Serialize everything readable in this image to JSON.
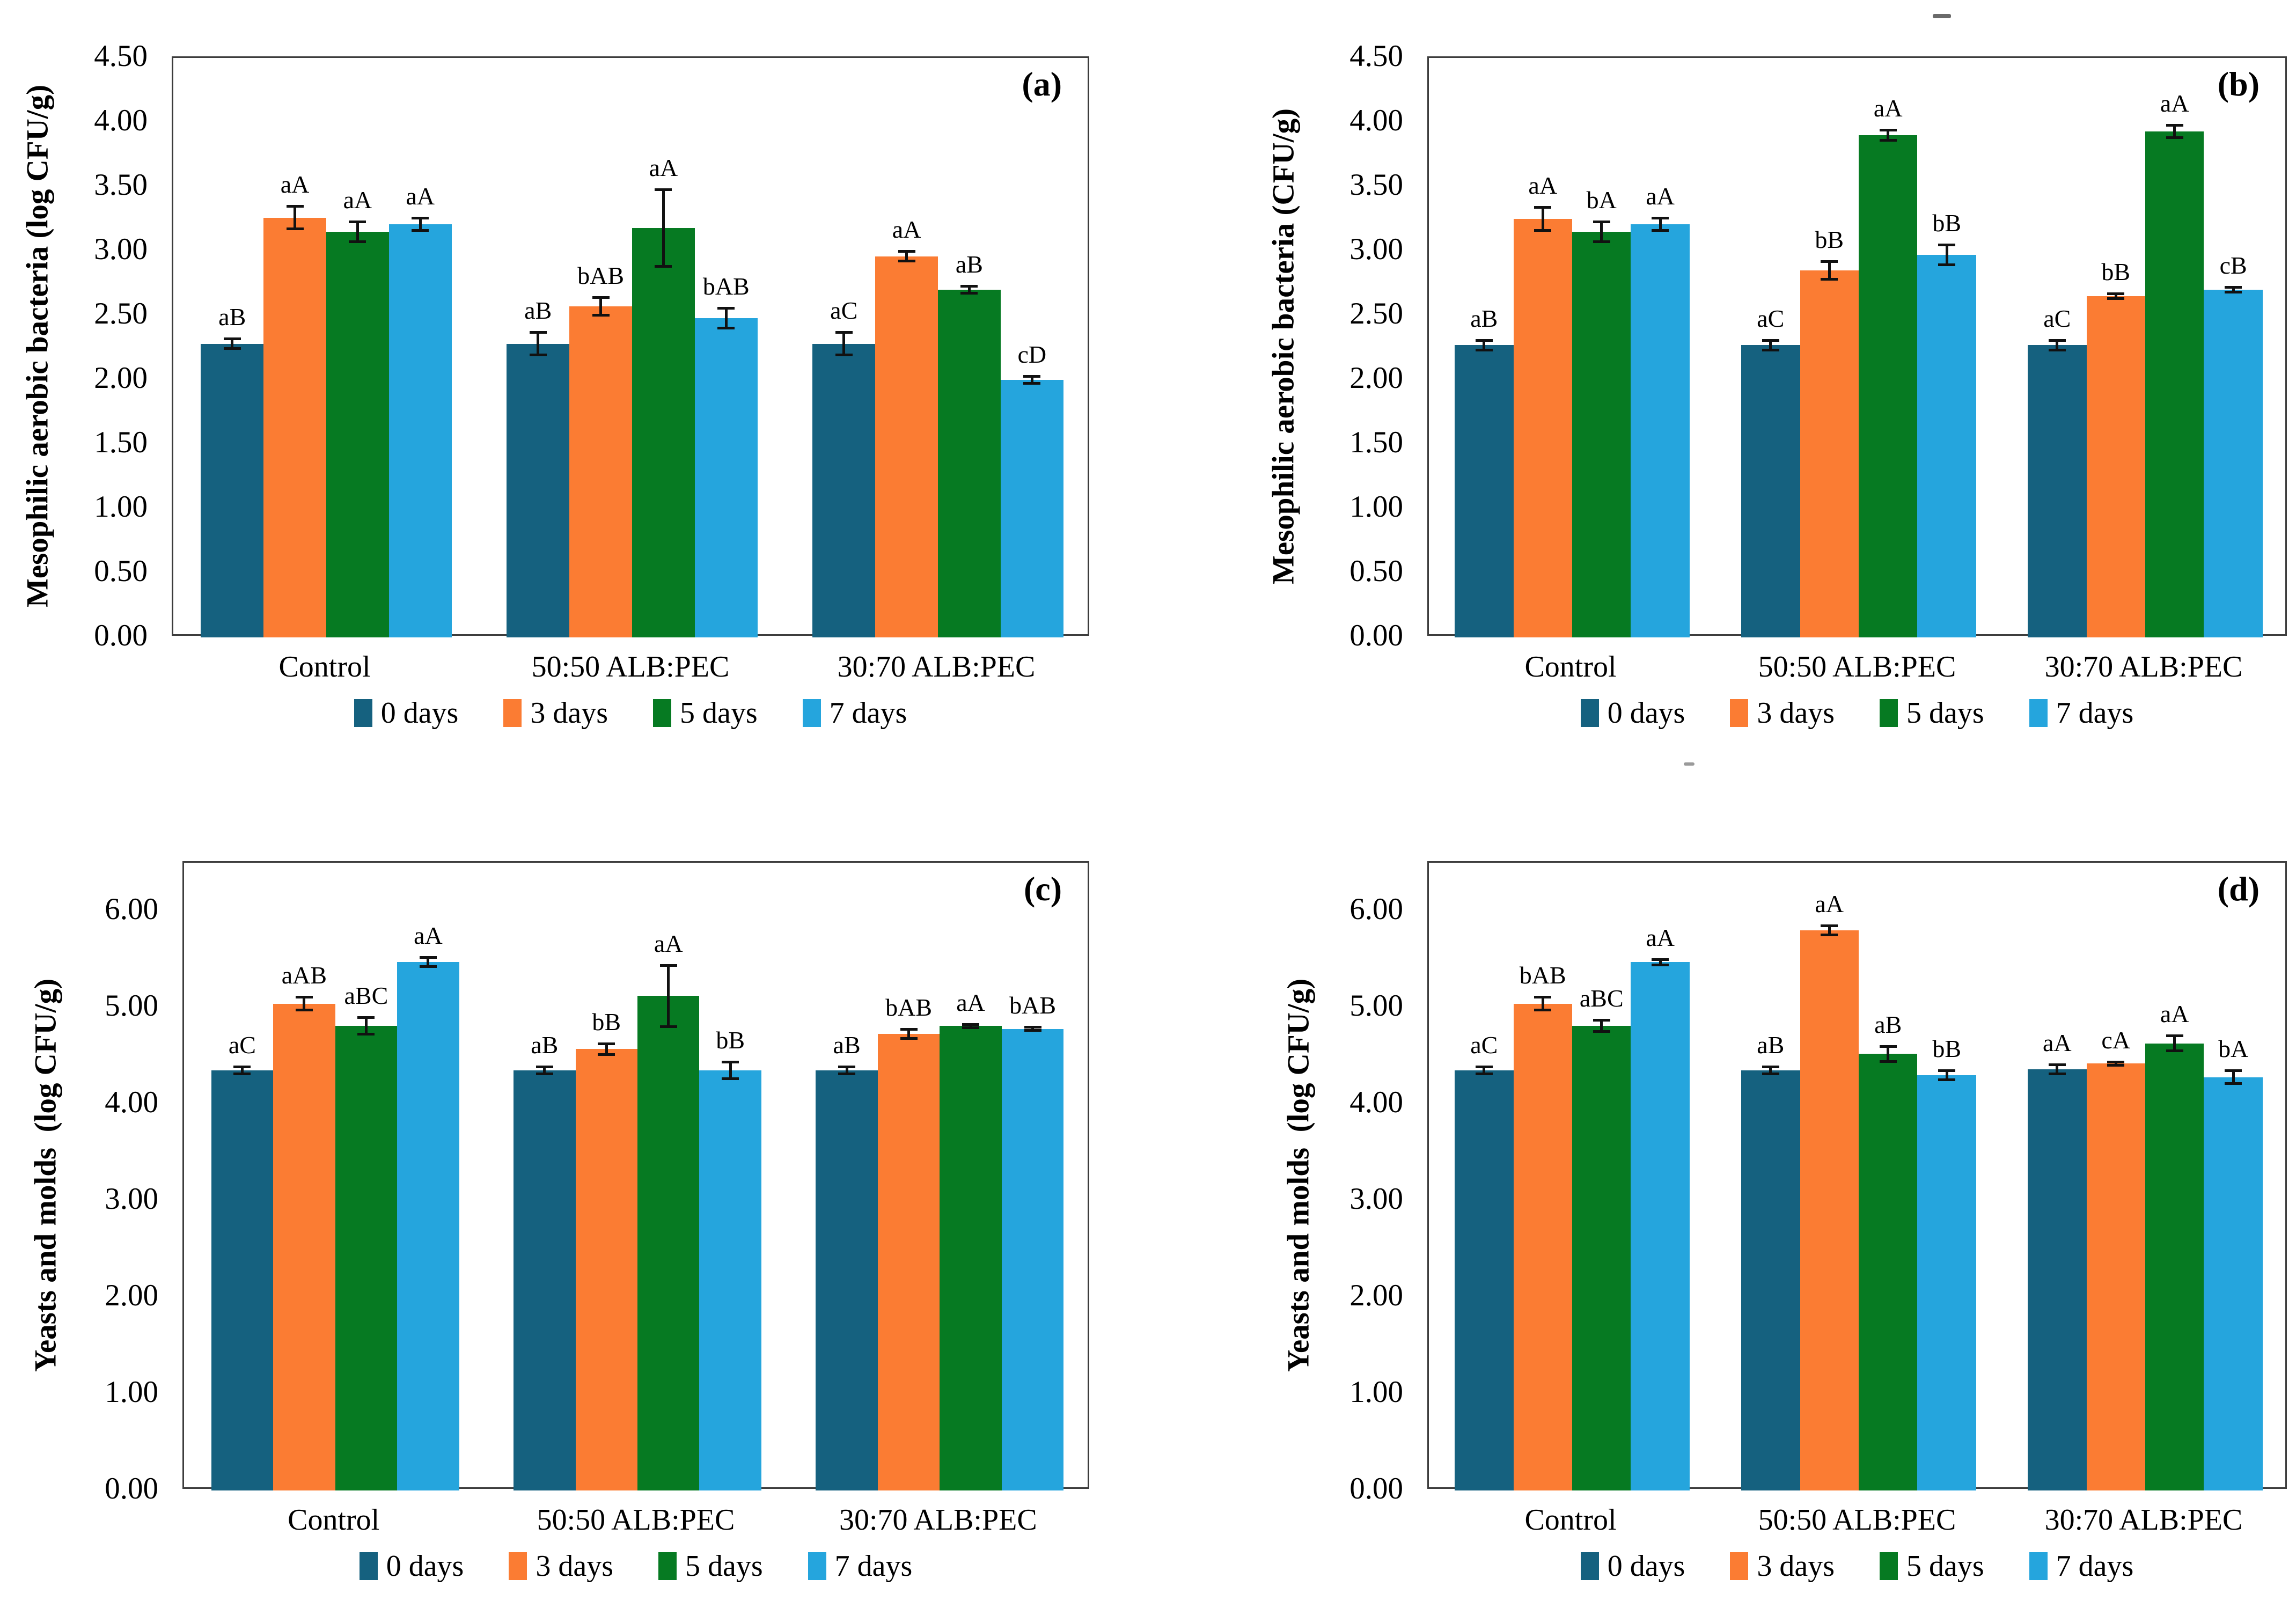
{
  "figure": {
    "background": "#ffffff",
    "colors": {
      "axis_frame": "#3d3d3d",
      "text": "#000000",
      "error_bars": "#111111"
    }
  },
  "legend": {
    "items": [
      {
        "label": "0 days",
        "color": "#15617F"
      },
      {
        "label": "3 days",
        "color": "#FB7C33"
      },
      {
        "label": "5 days",
        "color": "#067A22"
      },
      {
        "label": "7 days",
        "color": "#25A5DD"
      }
    ]
  },
  "categories": [
    "Control",
    "50:50 ALB:PEC",
    "30:70 ALB:PEC"
  ],
  "chart_data": [
    {
      "panel_label": "(a)",
      "type": "bar",
      "ylabel": "Mesophilic aerobic bacteria (log CFU/g)",
      "xlabel": "",
      "ylim": [
        0,
        4.5
      ],
      "frame_top": 4.5,
      "yticks": [
        "0.00",
        "0.50",
        "1.00",
        "1.50",
        "2.00",
        "2.50",
        "3.00",
        "3.50",
        "4.00",
        "4.50"
      ],
      "categories": [
        "Control",
        "50:50 ALB:PEC",
        "30:70 ALB:PEC"
      ],
      "series_names": [
        "0 days",
        "3 days",
        "5 days",
        "7 days"
      ],
      "groups": [
        {
          "category": "Control",
          "bars": [
            {
              "series": "0 days",
              "value": 2.28,
              "error": 0.04,
              "sig": "aB"
            },
            {
              "series": "3 days",
              "value": 3.26,
              "error": 0.09,
              "sig": "aA"
            },
            {
              "series": "5 days",
              "value": 3.15,
              "error": 0.08,
              "sig": "aA"
            },
            {
              "series": "7 days",
              "value": 3.21,
              "error": 0.05,
              "sig": "aA"
            }
          ]
        },
        {
          "category": "50:50 ALB:PEC",
          "bars": [
            {
              "series": "0 days",
              "value": 2.28,
              "error": 0.09,
              "sig": "aB"
            },
            {
              "series": "3 days",
              "value": 2.57,
              "error": 0.07,
              "sig": "bAB"
            },
            {
              "series": "5 days",
              "value": 3.18,
              "error": 0.3,
              "sig": "aA"
            },
            {
              "series": "7 days",
              "value": 2.48,
              "error": 0.08,
              "sig": "bAB"
            }
          ]
        },
        {
          "category": "30:70 ALB:PEC",
          "bars": [
            {
              "series": "0 days",
              "value": 2.28,
              "error": 0.09,
              "sig": "aC"
            },
            {
              "series": "3 days",
              "value": 2.96,
              "error": 0.04,
              "sig": "aA"
            },
            {
              "series": "5 days",
              "value": 2.7,
              "error": 0.03,
              "sig": "aB"
            },
            {
              "series": "7 days",
              "value": 2.0,
              "error": 0.03,
              "sig": "cD"
            }
          ]
        }
      ]
    },
    {
      "panel_label": "(b)",
      "type": "bar",
      "ylabel": "Mesophilic aerobic bacteria (CFU/g)",
      "xlabel": "",
      "ylim": [
        0,
        4.5
      ],
      "frame_top": 4.5,
      "yticks": [
        "0.00",
        "0.50",
        "1.00",
        "1.50",
        "2.00",
        "2.50",
        "3.00",
        "3.50",
        "4.00",
        "4.50"
      ],
      "categories": [
        "Control",
        "50:50 ALB:PEC",
        "30:70 ALB:PEC"
      ],
      "series_names": [
        "0 days",
        "3 days",
        "5 days",
        "7 days"
      ],
      "groups": [
        {
          "category": "Control",
          "bars": [
            {
              "series": "0 days",
              "value": 2.27,
              "error": 0.04,
              "sig": "aB"
            },
            {
              "series": "3 days",
              "value": 3.25,
              "error": 0.09,
              "sig": "aA"
            },
            {
              "series": "5 days",
              "value": 3.15,
              "error": 0.08,
              "sig": "bA"
            },
            {
              "series": "7 days",
              "value": 3.21,
              "error": 0.05,
              "sig": "aA"
            }
          ]
        },
        {
          "category": "50:50 ALB:PEC",
          "bars": [
            {
              "series": "0 days",
              "value": 2.27,
              "error": 0.04,
              "sig": "aC"
            },
            {
              "series": "3 days",
              "value": 2.85,
              "error": 0.07,
              "sig": "bB"
            },
            {
              "series": "5 days",
              "value": 3.9,
              "error": 0.04,
              "sig": "aA"
            },
            {
              "series": "7 days",
              "value": 2.97,
              "error": 0.08,
              "sig": "bB"
            }
          ]
        },
        {
          "category": "30:70 ALB:PEC",
          "bars": [
            {
              "series": "0 days",
              "value": 2.27,
              "error": 0.04,
              "sig": "aC"
            },
            {
              "series": "3 days",
              "value": 2.65,
              "error": 0.02,
              "sig": "bB"
            },
            {
              "series": "5 days",
              "value": 3.93,
              "error": 0.05,
              "sig": "aA"
            },
            {
              "series": "7 days",
              "value": 2.7,
              "error": 0.02,
              "sig": "cB"
            }
          ]
        }
      ]
    },
    {
      "panel_label": "(c)",
      "type": "bar",
      "ylabel": "Yeasts and molds  (log CFU/g)",
      "xlabel": "",
      "ylim": [
        0,
        6.0
      ],
      "frame_top": 6.5,
      "yticks": [
        "0.00",
        "1.00",
        "2.00",
        "3.00",
        "4.00",
        "5.00",
        "6.00"
      ],
      "categories": [
        "Control",
        "50:50 ALB:PEC",
        "30:70 ALB:PEC"
      ],
      "series_names": [
        "0 days",
        "3 days",
        "5 days",
        "7 days"
      ],
      "groups": [
        {
          "category": "Control",
          "bars": [
            {
              "series": "0 days",
              "value": 4.35,
              "error": 0.04,
              "sig": "aC"
            },
            {
              "series": "3 days",
              "value": 5.04,
              "error": 0.07,
              "sig": "aAB"
            },
            {
              "series": "5 days",
              "value": 4.81,
              "error": 0.09,
              "sig": "aBC"
            },
            {
              "series": "7 days",
              "value": 5.47,
              "error": 0.05,
              "sig": "aA"
            }
          ]
        },
        {
          "category": "50:50 ALB:PEC",
          "bars": [
            {
              "series": "0 days",
              "value": 4.35,
              "error": 0.04,
              "sig": "aB"
            },
            {
              "series": "3 days",
              "value": 4.57,
              "error": 0.06,
              "sig": "bB"
            },
            {
              "series": "5 days",
              "value": 5.12,
              "error": 0.32,
              "sig": "aA"
            },
            {
              "series": "7 days",
              "value": 4.35,
              "error": 0.09,
              "sig": "bB"
            }
          ]
        },
        {
          "category": "30:70 ALB:PEC",
          "bars": [
            {
              "series": "0 days",
              "value": 4.35,
              "error": 0.04,
              "sig": "aB"
            },
            {
              "series": "3 days",
              "value": 4.73,
              "error": 0.05,
              "sig": "bAB"
            },
            {
              "series": "5 days",
              "value": 4.81,
              "error": 0.02,
              "sig": "aA"
            },
            {
              "series": "7 days",
              "value": 4.78,
              "error": 0.02,
              "sig": "bAB"
            }
          ]
        }
      ]
    },
    {
      "panel_label": "(d)",
      "type": "bar",
      "ylabel": "Yeasts and molds  (log CFU/g)",
      "xlabel": "",
      "ylim": [
        0,
        6.0
      ],
      "frame_top": 6.5,
      "yticks": [
        "0.00",
        "1.00",
        "2.00",
        "3.00",
        "4.00",
        "5.00",
        "6.00"
      ],
      "categories": [
        "Control",
        "50:50 ALB:PEC",
        "30:70 ALB:PEC"
      ],
      "series_names": [
        "0 days",
        "3 days",
        "5 days",
        "7 days"
      ],
      "groups": [
        {
          "category": "Control",
          "bars": [
            {
              "series": "0 days",
              "value": 4.35,
              "error": 0.04,
              "sig": "aC"
            },
            {
              "series": "3 days",
              "value": 5.04,
              "error": 0.07,
              "sig": "bAB"
            },
            {
              "series": "5 days",
              "value": 4.81,
              "error": 0.06,
              "sig": "aBC"
            },
            {
              "series": "7 days",
              "value": 5.47,
              "error": 0.03,
              "sig": "aA"
            }
          ]
        },
        {
          "category": "50:50 ALB:PEC",
          "bars": [
            {
              "series": "0 days",
              "value": 4.35,
              "error": 0.04,
              "sig": "aB"
            },
            {
              "series": "3 days",
              "value": 5.8,
              "error": 0.05,
              "sig": "aA"
            },
            {
              "series": "5 days",
              "value": 4.52,
              "error": 0.08,
              "sig": "aB"
            },
            {
              "series": "7 days",
              "value": 4.3,
              "error": 0.05,
              "sig": "bB"
            }
          ]
        },
        {
          "category": "30:70 ALB:PEC",
          "bars": [
            {
              "series": "0 days",
              "value": 4.36,
              "error": 0.05,
              "sig": "aA"
            },
            {
              "series": "3 days",
              "value": 4.42,
              "error": 0.02,
              "sig": "cA"
            },
            {
              "series": "5 days",
              "value": 4.63,
              "error": 0.08,
              "sig": "aA"
            },
            {
              "series": "7 days",
              "value": 4.28,
              "error": 0.07,
              "sig": "bA"
            }
          ]
        }
      ]
    }
  ]
}
